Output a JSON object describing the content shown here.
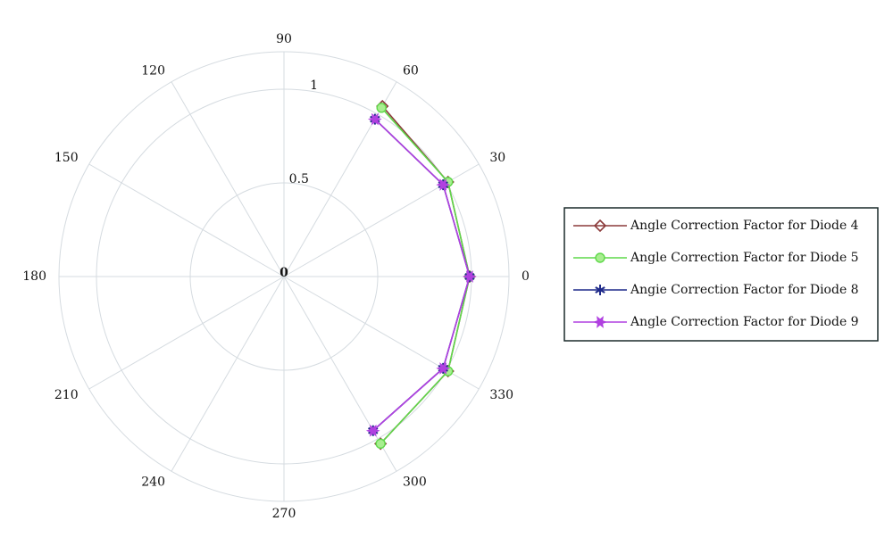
{
  "chart_data": {
    "type": "polar_line",
    "x": [
      300,
      330,
      0,
      30,
      60
    ],
    "series": [
      {
        "name": "Angle Correction Factor for Diode 4",
        "color": "#8b3a3a",
        "marker": "diamond",
        "values": [
          1.03,
          1.01,
          0.99,
          1.01,
          1.05
        ]
      },
      {
        "name": "Angle Correction Factor for Diode 5",
        "color": "#5fd84a",
        "marker": "circle",
        "values": [
          1.03,
          1.01,
          0.99,
          1.01,
          1.04
        ]
      },
      {
        "name": "Angie Correction Factor for Diode 8",
        "color": "#1f2a8a",
        "marker": "asterisk",
        "values": [
          0.95,
          0.98,
          0.99,
          0.98,
          0.97
        ]
      },
      {
        "name": "Angle Correction Factor for Diode 9",
        "color": "#b040e0",
        "marker": "star",
        "values": [
          0.95,
          0.98,
          0.99,
          0.98,
          0.97
        ]
      }
    ],
    "rlim": [
      0,
      1.2
    ],
    "rticks": [
      0,
      0.5,
      1
    ],
    "thetaticks": [
      0,
      30,
      60,
      90,
      120,
      150,
      180,
      210,
      240,
      270,
      300,
      330
    ],
    "grid": true,
    "legend": "right"
  }
}
